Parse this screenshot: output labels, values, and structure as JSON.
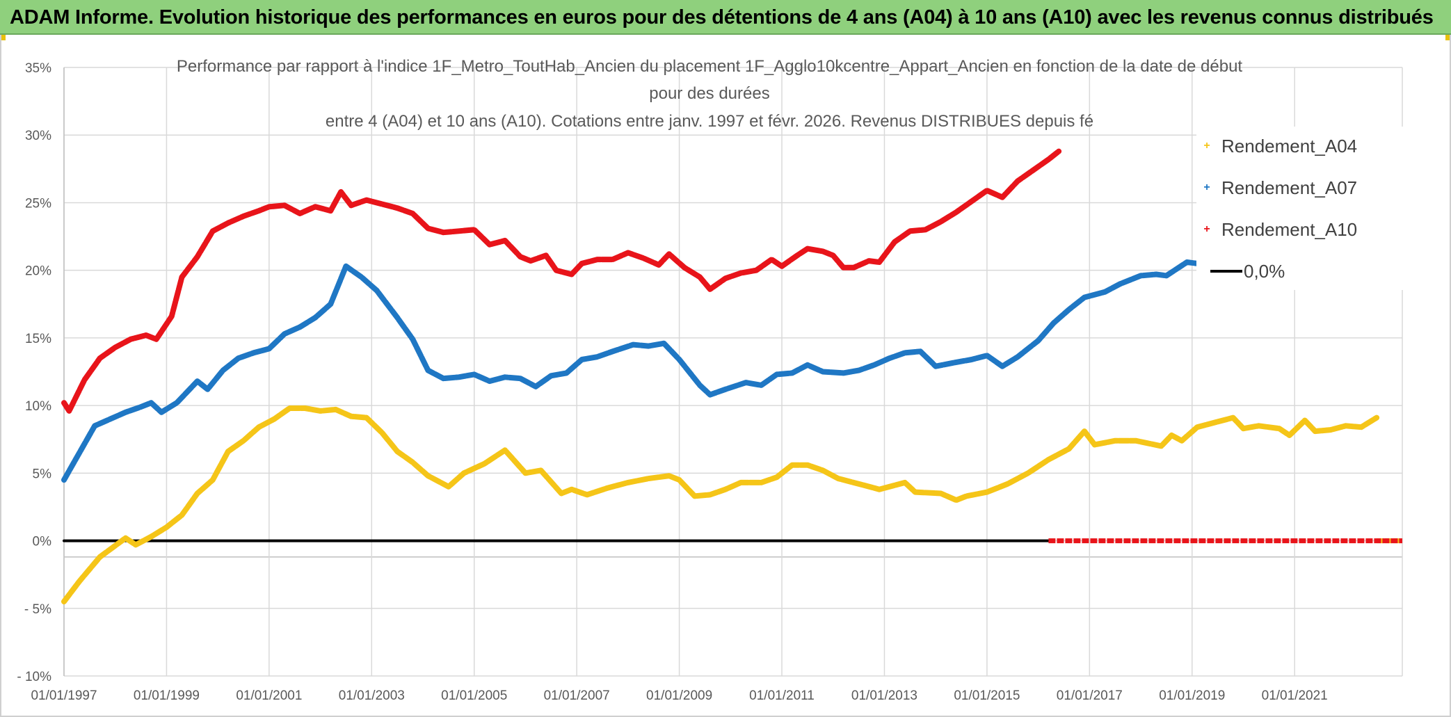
{
  "header": {
    "title": "ADAM Informe. Evolution historique des performances en euros pour des détentions de 4 ans (A04) à 10 ans (A10) avec les revenus connus distribués"
  },
  "chart_data": {
    "type": "line",
    "title_lines": [
      "Performance  par rapport à l'indice 1F_Metro_ToutHab_Ancien   du placement 1F_Agglo10kcentre_Appart_Ancien  en fonction de la date de début",
      "pour des durées",
      "entre 4 (A04) et 10 ans (A10). Cotations entre janv. 1997 et févr. 2026.  Revenus DISTRIBUES depuis fé"
    ],
    "x_tick_labels": [
      "01/01/1997",
      "01/01/1999",
      "01/01/2001",
      "01/01/2003",
      "01/01/2005",
      "01/01/2007",
      "01/01/2009",
      "01/01/2011",
      "01/01/2013",
      "01/01/2015",
      "01/01/2017",
      "01/01/2019",
      "01/01/2021"
    ],
    "y_tick_labels": [
      "35%",
      "30%",
      "25%",
      "20%",
      "15%",
      "10%",
      "5%",
      "0%",
      "- 5%",
      "- 10%"
    ],
    "xlim": [
      1997.0,
      2023.1
    ],
    "ylim": [
      -10,
      35
    ],
    "y_unit": "%",
    "grid": true,
    "legend_position": "right",
    "series": [
      {
        "name": "Rendement_A04",
        "color": "#f5c518",
        "points": [
          [
            1997.0,
            -4.5
          ],
          [
            1997.3,
            -3.0
          ],
          [
            1997.7,
            -1.2
          ],
          [
            1998.2,
            0.2
          ],
          [
            1998.4,
            -0.3
          ],
          [
            1998.7,
            0.3
          ],
          [
            1999.0,
            1.0
          ],
          [
            1999.3,
            1.9
          ],
          [
            1999.6,
            3.5
          ],
          [
            1999.9,
            4.5
          ],
          [
            2000.2,
            6.6
          ],
          [
            2000.5,
            7.4
          ],
          [
            2000.8,
            8.4
          ],
          [
            2001.1,
            9.0
          ],
          [
            2001.4,
            9.8
          ],
          [
            2001.7,
            9.8
          ],
          [
            2002.0,
            9.6
          ],
          [
            2002.3,
            9.7
          ],
          [
            2002.6,
            9.2
          ],
          [
            2002.9,
            9.1
          ],
          [
            2003.2,
            8.0
          ],
          [
            2003.5,
            6.6
          ],
          [
            2003.8,
            5.8
          ],
          [
            2004.1,
            4.8
          ],
          [
            2004.5,
            4.0
          ],
          [
            2004.8,
            5.0
          ],
          [
            2005.2,
            5.7
          ],
          [
            2005.6,
            6.7
          ],
          [
            2006.0,
            5.0
          ],
          [
            2006.3,
            5.2
          ],
          [
            2006.7,
            3.5
          ],
          [
            2006.9,
            3.8
          ],
          [
            2007.2,
            3.4
          ],
          [
            2007.6,
            3.9
          ],
          [
            2008.0,
            4.3
          ],
          [
            2008.4,
            4.6
          ],
          [
            2008.8,
            4.8
          ],
          [
            2009.0,
            4.5
          ],
          [
            2009.3,
            3.3
          ],
          [
            2009.6,
            3.4
          ],
          [
            2009.9,
            3.8
          ],
          [
            2010.2,
            4.3
          ],
          [
            2010.6,
            4.3
          ],
          [
            2010.9,
            4.7
          ],
          [
            2011.2,
            5.6
          ],
          [
            2011.5,
            5.6
          ],
          [
            2011.8,
            5.2
          ],
          [
            2012.1,
            4.6
          ],
          [
            2012.6,
            4.1
          ],
          [
            2012.9,
            3.8
          ],
          [
            2013.4,
            4.3
          ],
          [
            2013.6,
            3.6
          ],
          [
            2014.1,
            3.5
          ],
          [
            2014.4,
            3.0
          ],
          [
            2014.6,
            3.3
          ],
          [
            2015.0,
            3.6
          ],
          [
            2015.4,
            4.2
          ],
          [
            2015.8,
            5.0
          ],
          [
            2016.2,
            6.0
          ],
          [
            2016.6,
            6.8
          ],
          [
            2016.9,
            8.1
          ],
          [
            2017.1,
            7.1
          ],
          [
            2017.5,
            7.4
          ],
          [
            2017.9,
            7.4
          ],
          [
            2018.4,
            7.0
          ],
          [
            2018.6,
            7.8
          ],
          [
            2018.8,
            7.4
          ],
          [
            2019.1,
            8.4
          ],
          [
            2019.5,
            8.8
          ],
          [
            2019.8,
            9.1
          ],
          [
            2020.0,
            8.3
          ],
          [
            2020.3,
            8.5
          ],
          [
            2020.7,
            8.3
          ],
          [
            2020.9,
            7.8
          ],
          [
            2021.2,
            8.9
          ],
          [
            2021.4,
            8.1
          ],
          [
            2021.7,
            8.2
          ],
          [
            2022.0,
            8.5
          ],
          [
            2022.3,
            8.4
          ],
          [
            2022.6,
            9.1
          ]
        ],
        "tail_points": [
          [
            2022.6,
            0.0
          ],
          [
            2023.1,
            0.0
          ]
        ]
      },
      {
        "name": "Rendement_A07",
        "color": "#1f77c4",
        "points": [
          [
            1997.0,
            4.5
          ],
          [
            1997.3,
            6.5
          ],
          [
            1997.6,
            8.5
          ],
          [
            1997.9,
            9.0
          ],
          [
            1998.2,
            9.5
          ],
          [
            1998.5,
            9.9
          ],
          [
            1998.7,
            10.2
          ],
          [
            1998.9,
            9.5
          ],
          [
            1999.2,
            10.2
          ],
          [
            1999.6,
            11.8
          ],
          [
            1999.8,
            11.2
          ],
          [
            2000.1,
            12.6
          ],
          [
            2000.4,
            13.5
          ],
          [
            2000.7,
            13.9
          ],
          [
            2001.0,
            14.2
          ],
          [
            2001.3,
            15.3
          ],
          [
            2001.6,
            15.8
          ],
          [
            2001.9,
            16.5
          ],
          [
            2002.2,
            17.5
          ],
          [
            2002.5,
            20.3
          ],
          [
            2002.8,
            19.5
          ],
          [
            2003.1,
            18.5
          ],
          [
            2003.5,
            16.5
          ],
          [
            2003.8,
            14.9
          ],
          [
            2004.1,
            12.6
          ],
          [
            2004.4,
            12.0
          ],
          [
            2004.7,
            12.1
          ],
          [
            2005.0,
            12.3
          ],
          [
            2005.3,
            11.8
          ],
          [
            2005.6,
            12.1
          ],
          [
            2005.9,
            12.0
          ],
          [
            2006.2,
            11.4
          ],
          [
            2006.5,
            12.2
          ],
          [
            2006.8,
            12.4
          ],
          [
            2007.1,
            13.4
          ],
          [
            2007.4,
            13.6
          ],
          [
            2007.7,
            14.0
          ],
          [
            2008.1,
            14.5
          ],
          [
            2008.4,
            14.4
          ],
          [
            2008.7,
            14.6
          ],
          [
            2009.0,
            13.4
          ],
          [
            2009.4,
            11.5
          ],
          [
            2009.6,
            10.8
          ],
          [
            2009.9,
            11.2
          ],
          [
            2010.3,
            11.7
          ],
          [
            2010.6,
            11.5
          ],
          [
            2010.9,
            12.3
          ],
          [
            2011.2,
            12.4
          ],
          [
            2011.5,
            13.0
          ],
          [
            2011.8,
            12.5
          ],
          [
            2012.2,
            12.4
          ],
          [
            2012.5,
            12.6
          ],
          [
            2012.8,
            13.0
          ],
          [
            2013.1,
            13.5
          ],
          [
            2013.4,
            13.9
          ],
          [
            2013.7,
            14.0
          ],
          [
            2014.0,
            12.9
          ],
          [
            2014.4,
            13.2
          ],
          [
            2014.7,
            13.4
          ],
          [
            2015.0,
            13.7
          ],
          [
            2015.3,
            12.9
          ],
          [
            2015.6,
            13.6
          ],
          [
            2016.0,
            14.8
          ],
          [
            2016.3,
            16.1
          ],
          [
            2016.6,
            17.1
          ],
          [
            2016.9,
            18.0
          ],
          [
            2017.3,
            18.4
          ],
          [
            2017.6,
            19.0
          ],
          [
            2018.0,
            19.6
          ],
          [
            2018.3,
            19.7
          ],
          [
            2018.5,
            19.6
          ],
          [
            2018.9,
            20.6
          ],
          [
            2019.1,
            20.5
          ]
        ],
        "tail_points": []
      },
      {
        "name": "Rendement_A10",
        "color": "#e8141a",
        "points": [
          [
            1997.0,
            10.2
          ],
          [
            1997.1,
            9.6
          ],
          [
            1997.4,
            11.9
          ],
          [
            1997.7,
            13.5
          ],
          [
            1998.0,
            14.3
          ],
          [
            1998.3,
            14.9
          ],
          [
            1998.6,
            15.2
          ],
          [
            1998.8,
            14.9
          ],
          [
            1999.1,
            16.6
          ],
          [
            1999.3,
            19.5
          ],
          [
            1999.6,
            21.0
          ],
          [
            1999.9,
            22.9
          ],
          [
            2000.2,
            23.5
          ],
          [
            2000.5,
            24.0
          ],
          [
            2000.8,
            24.4
          ],
          [
            2001.0,
            24.7
          ],
          [
            2001.3,
            24.8
          ],
          [
            2001.6,
            24.2
          ],
          [
            2001.9,
            24.7
          ],
          [
            2002.2,
            24.4
          ],
          [
            2002.4,
            25.8
          ],
          [
            2002.6,
            24.8
          ],
          [
            2002.9,
            25.2
          ],
          [
            2003.2,
            24.9
          ],
          [
            2003.5,
            24.6
          ],
          [
            2003.8,
            24.2
          ],
          [
            2004.1,
            23.1
          ],
          [
            2004.4,
            22.8
          ],
          [
            2004.7,
            22.9
          ],
          [
            2005.0,
            23.0
          ],
          [
            2005.3,
            21.9
          ],
          [
            2005.6,
            22.2
          ],
          [
            2005.9,
            21.0
          ],
          [
            2006.1,
            20.7
          ],
          [
            2006.4,
            21.1
          ],
          [
            2006.6,
            20.0
          ],
          [
            2006.9,
            19.7
          ],
          [
            2007.1,
            20.5
          ],
          [
            2007.4,
            20.8
          ],
          [
            2007.7,
            20.8
          ],
          [
            2008.0,
            21.3
          ],
          [
            2008.3,
            20.9
          ],
          [
            2008.6,
            20.4
          ],
          [
            2008.8,
            21.2
          ],
          [
            2009.1,
            20.2
          ],
          [
            2009.4,
            19.5
          ],
          [
            2009.6,
            18.6
          ],
          [
            2009.9,
            19.4
          ],
          [
            2010.2,
            19.8
          ],
          [
            2010.5,
            20.0
          ],
          [
            2010.8,
            20.8
          ],
          [
            2011.0,
            20.3
          ],
          [
            2011.3,
            21.1
          ],
          [
            2011.5,
            21.6
          ],
          [
            2011.8,
            21.4
          ],
          [
            2012.0,
            21.1
          ],
          [
            2012.2,
            20.2
          ],
          [
            2012.4,
            20.2
          ],
          [
            2012.7,
            20.7
          ],
          [
            2012.9,
            20.6
          ],
          [
            2013.2,
            22.1
          ],
          [
            2013.5,
            22.9
          ],
          [
            2013.8,
            23.0
          ],
          [
            2014.1,
            23.6
          ],
          [
            2014.4,
            24.3
          ],
          [
            2014.7,
            25.1
          ],
          [
            2015.0,
            25.9
          ],
          [
            2015.3,
            25.4
          ],
          [
            2015.6,
            26.6
          ],
          [
            2015.9,
            27.4
          ],
          [
            2016.2,
            28.2
          ],
          [
            2016.4,
            28.8
          ]
        ],
        "tail_points": [
          [
            2016.2,
            0.0
          ],
          [
            2023.1,
            0.0
          ]
        ]
      },
      {
        "name": "0,0%",
        "color": "#000000",
        "points": [
          [
            1997.0,
            0.0
          ],
          [
            2016.2,
            0.0
          ]
        ],
        "tail_points": []
      }
    ]
  }
}
